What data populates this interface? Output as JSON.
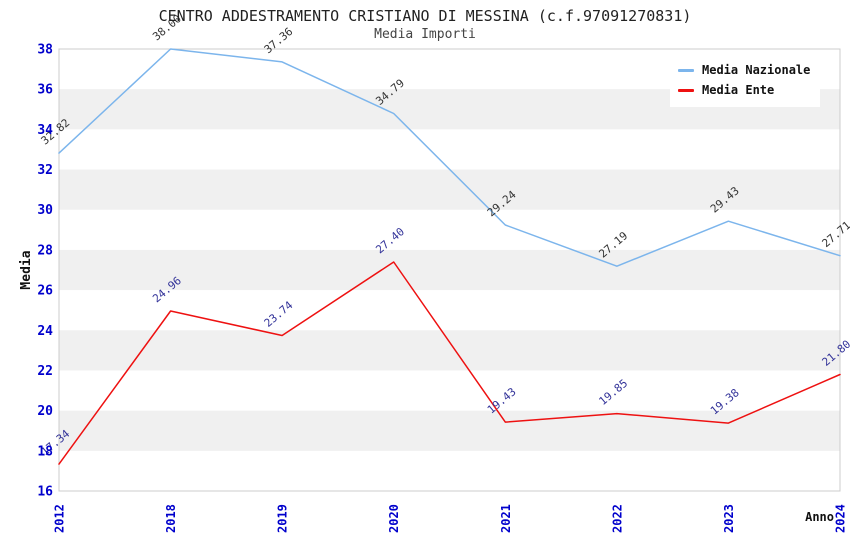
{
  "title": "CENTRO ADDESTRAMENTO CRISTIANO DI MESSINA (c.f.97091270831)",
  "subtitle": "Media Importi",
  "chart_data": {
    "type": "line",
    "x_categories": [
      "2012",
      "2018",
      "2019",
      "2020",
      "2021",
      "2022",
      "2023",
      "2024"
    ],
    "series": [
      {
        "name": "Media Nazionale",
        "color": "#7CB5EC",
        "label_color": "#333333",
        "values": [
          32.82,
          38.0,
          37.36,
          34.79,
          29.24,
          27.19,
          29.43,
          27.71
        ]
      },
      {
        "name": "Media Ente",
        "color": "#EE1111",
        "label_color": "#333399",
        "values": [
          17.34,
          24.96,
          23.74,
          27.4,
          19.43,
          19.85,
          19.38,
          21.8
        ]
      }
    ],
    "xlabel": "Anno",
    "ylabel": "Media",
    "ylim": [
      16,
      38
    ],
    "yticks": [
      16,
      18,
      20,
      22,
      24,
      26,
      28,
      30,
      32,
      34,
      36,
      38
    ],
    "value_label_decimals": 2,
    "grid": "alternating-horizontal-bands",
    "band_color": "#F0F0F0",
    "plot_border_color": "#CCCCCC",
    "tick_label_color": "#0000CC",
    "axis_title_color": "#111111",
    "legend_position": "top-right"
  }
}
